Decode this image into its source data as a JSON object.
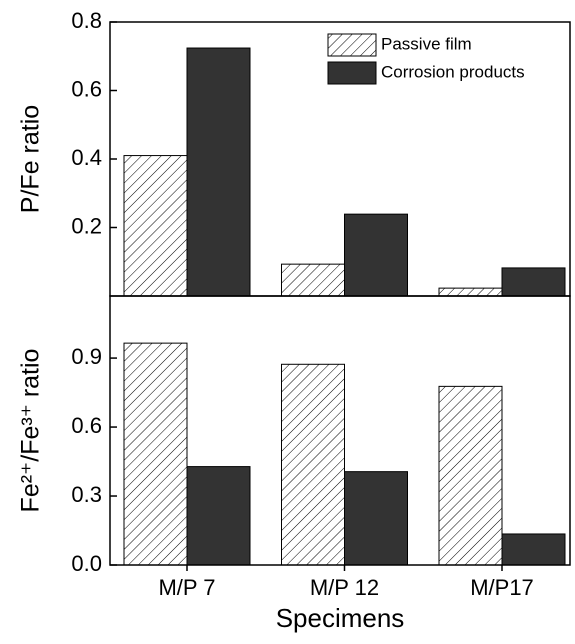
{
  "chart_data": [
    {
      "type": "bar",
      "y_label": "P/Fe ratio",
      "categories": [
        "M/P 7",
        "M/P 12",
        "M/P17"
      ],
      "series": [
        {
          "name": "Passive film",
          "color": "#ffffff",
          "pattern": "hatch",
          "values": [
            0.41,
            0.093,
            0.023
          ]
        },
        {
          "name": "Corrosion products",
          "color": "#333333",
          "values": [
            0.724,
            0.239,
            0.082
          ]
        }
      ],
      "ylim": [
        0,
        0.8
      ],
      "yticks": [
        0.2,
        0.4,
        0.6,
        0.8
      ],
      "legend": "upper right"
    },
    {
      "type": "bar",
      "y_label": "Fe²⁺/Fe³⁺ ratio",
      "x_label": "Specimens",
      "categories": [
        "M/P 7",
        "M/P 12",
        "M/P17"
      ],
      "series": [
        {
          "name": "Passive film",
          "color": "#ffffff",
          "pattern": "hatch",
          "values": [
            0.965,
            0.873,
            0.777
          ]
        },
        {
          "name": "Corrosion products",
          "color": "#333333",
          "values": [
            0.428,
            0.406,
            0.135
          ]
        }
      ],
      "ylim": [
        0,
        1.17
      ],
      "yticks": [
        {
          "value": 0,
          "label": "0.0"
        },
        0.3,
        0.6,
        0.9
      ]
    }
  ]
}
